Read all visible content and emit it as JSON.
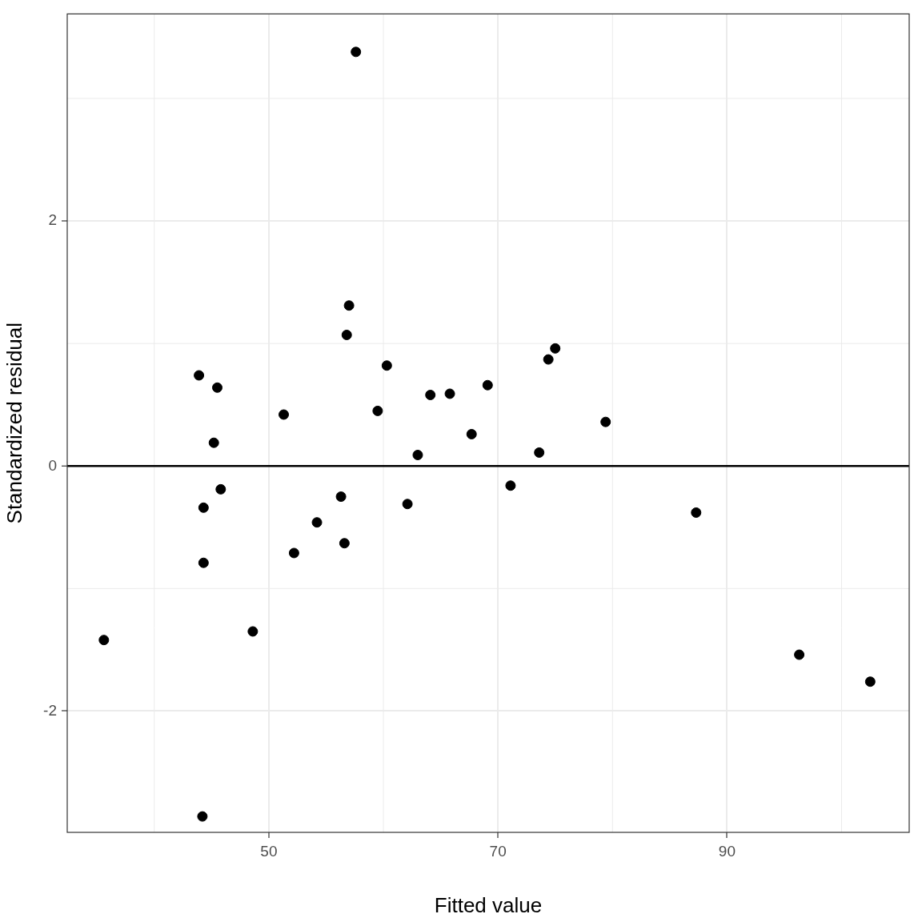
{
  "chart_data": {
    "type": "scatter",
    "x_label": "Fitted value",
    "y_label": "Standardized residual",
    "x": [
      35.6,
      43.9,
      45.5,
      45.2,
      45.8,
      44.3,
      44.3,
      44.2,
      48.6,
      51.3,
      52.2,
      54.2,
      56.3,
      56.6,
      56.8,
      57.0,
      57.6,
      59.5,
      60.3,
      62.1,
      63.0,
      64.1,
      65.8,
      67.7,
      69.1,
      71.1,
      73.6,
      74.4,
      75.0,
      79.4,
      87.3,
      96.3,
      102.5
    ],
    "values": [
      -1.42,
      0.74,
      0.64,
      0.19,
      -0.19,
      -0.34,
      -0.79,
      -2.86,
      -1.35,
      0.42,
      -0.71,
      -0.46,
      -0.25,
      -0.63,
      1.07,
      1.31,
      3.38,
      0.45,
      0.82,
      -0.31,
      0.09,
      0.58,
      0.59,
      0.26,
      0.66,
      -0.16,
      0.11,
      0.87,
      0.96,
      0.36,
      -0.38,
      -1.54,
      -1.76
    ],
    "color": "#000000",
    "marker": "circle",
    "xlim": [
      32.4,
      105.9
    ],
    "ylim": [
      -2.99,
      3.69
    ],
    "xticks": [
      50,
      70,
      90
    ],
    "yticks": [
      -2,
      0,
      2
    ],
    "grid": true
  }
}
